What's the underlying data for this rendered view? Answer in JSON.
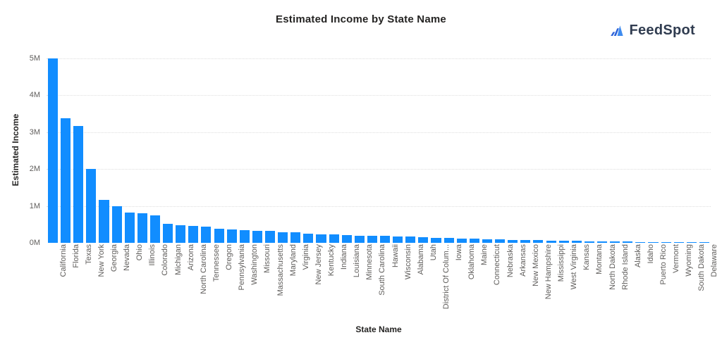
{
  "header": {
    "title": "Estimated Income by State Name"
  },
  "logo": {
    "text": "FeedSpot",
    "icon": "feedspot-mountain-icon",
    "icon_color_dark": "#2D63D9",
    "icon_color_light": "#3F8CEF",
    "text_color": "#303C50"
  },
  "chart_data": {
    "type": "bar",
    "title": "Estimated Income by State Name",
    "xlabel": "State Name",
    "ylabel": "Estimated Income",
    "legend_position": "none",
    "grid": "horizontal-dotted",
    "bar_color": "#118DFF",
    "value_unit": "millions",
    "ylim_millions": [
      0,
      5
    ],
    "y_tick_labels": [
      "0M",
      "1M",
      "2M",
      "3M",
      "4M",
      "5M"
    ],
    "categories": [
      "California",
      "Florida",
      "Texas",
      "New York",
      "Georgia",
      "Nevada",
      "Ohio",
      "Illinois",
      "Colorado",
      "Michigan",
      "Arizona",
      "North Carolina",
      "Tennessee",
      "Oregon",
      "Pennsylvania",
      "Washington",
      "Missouri",
      "Massachusetts",
      "Maryland",
      "Virginia",
      "New Jersey",
      "Kentucky",
      "Indiana",
      "Louisiana",
      "Minnesota",
      "South Carolina",
      "Hawaii",
      "Wisconsin",
      "Alabama",
      "Utah",
      "District Of Colum...",
      "Iowa",
      "Oklahoma",
      "Maine",
      "Connecticut",
      "Nebraska",
      "Arkansas",
      "New Mexico",
      "New Hampshire",
      "Mississippi",
      "West Virginia",
      "Kansas",
      "Montana",
      "North Dakota",
      "Rhode Island",
      "Alaska",
      "Idaho",
      "Puerto Rico",
      "Vermont",
      "Wyoming",
      "South Dakota",
      "Delaware"
    ],
    "values_millions": [
      5.0,
      3.37,
      3.16,
      2.0,
      1.16,
      1.0,
      0.83,
      0.81,
      0.74,
      0.52,
      0.48,
      0.46,
      0.43,
      0.39,
      0.37,
      0.34,
      0.33,
      0.32,
      0.29,
      0.28,
      0.25,
      0.23,
      0.22,
      0.21,
      0.2,
      0.19,
      0.185,
      0.18,
      0.17,
      0.16,
      0.14,
      0.13,
      0.12,
      0.11,
      0.1,
      0.09,
      0.08,
      0.075,
      0.07,
      0.06,
      0.055,
      0.05,
      0.045,
      0.04,
      0.035,
      0.03,
      0.028,
      0.025,
      0.022,
      0.02,
      0.018,
      0.015
    ]
  }
}
